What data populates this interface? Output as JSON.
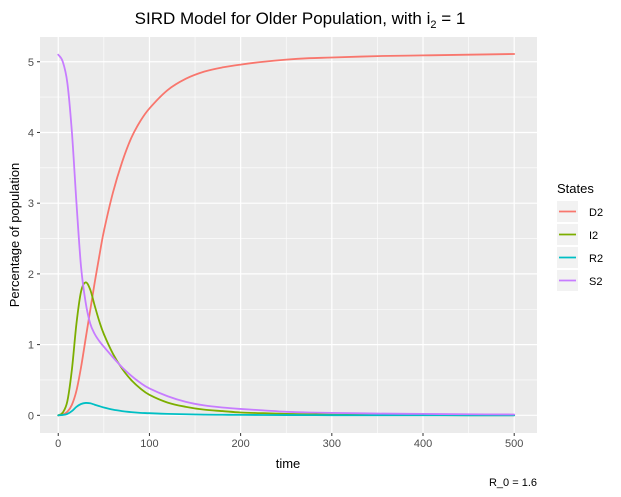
{
  "chart_data": {
    "type": "line",
    "title": "SIRD Model for Older Population, with i",
    "title_subscript": "2",
    "title_suffix": " = 1",
    "xlabel": "time",
    "ylabel": "Percentage of population",
    "caption": "R_0 = 1.6",
    "xlim": [
      -20,
      525
    ],
    "ylim": [
      -0.25,
      5.35
    ],
    "x_ticks": [
      0,
      100,
      200,
      300,
      400,
      500
    ],
    "y_ticks": [
      0,
      1,
      2,
      3,
      4,
      5
    ],
    "x_tick_labels": [
      "0",
      "100",
      "200",
      "300",
      "400",
      "500"
    ],
    "y_tick_labels": [
      "0",
      "1",
      "2",
      "3",
      "4",
      "5"
    ],
    "grid": true,
    "legend": {
      "title": "States",
      "position": "right",
      "entries": [
        "D2",
        "I2",
        "R2",
        "S2"
      ]
    },
    "x": [
      0,
      5,
      10,
      15,
      20,
      25,
      30,
      35,
      40,
      45,
      50,
      60,
      70,
      80,
      90,
      100,
      120,
      140,
      160,
      180,
      200,
      225,
      250,
      275,
      300,
      350,
      400,
      450,
      500
    ],
    "series": [
      {
        "name": "D2",
        "color": "#F8766D",
        "values": [
          0.0,
          0.01,
          0.05,
          0.15,
          0.35,
          0.68,
          1.08,
          1.48,
          1.88,
          2.25,
          2.6,
          3.15,
          3.58,
          3.92,
          4.16,
          4.34,
          4.6,
          4.76,
          4.86,
          4.92,
          4.96,
          5.0,
          5.03,
          5.05,
          5.06,
          5.08,
          5.09,
          5.1,
          5.11
        ]
      },
      {
        "name": "I2",
        "color": "#7CAE00",
        "values": [
          0.0,
          0.04,
          0.2,
          0.65,
          1.3,
          1.75,
          1.88,
          1.78,
          1.55,
          1.33,
          1.15,
          0.87,
          0.66,
          0.5,
          0.38,
          0.29,
          0.18,
          0.12,
          0.08,
          0.06,
          0.04,
          0.03,
          0.02,
          0.015,
          0.01,
          0.005,
          0.003,
          0.002,
          0.001
        ]
      },
      {
        "name": "R2",
        "color": "#00BFC4",
        "values": [
          0.0,
          0.005,
          0.02,
          0.06,
          0.12,
          0.16,
          0.175,
          0.17,
          0.15,
          0.13,
          0.11,
          0.08,
          0.06,
          0.045,
          0.035,
          0.03,
          0.02,
          0.015,
          0.01,
          0.008,
          0.006,
          0.005,
          0.004,
          0.003,
          0.002,
          0.001,
          0.001,
          0.0,
          0.0
        ]
      },
      {
        "name": "S2",
        "color": "#C77CFF",
        "values": [
          5.1,
          5.0,
          4.7,
          4.0,
          3.0,
          2.1,
          1.6,
          1.3,
          1.15,
          1.05,
          0.97,
          0.82,
          0.68,
          0.56,
          0.46,
          0.38,
          0.27,
          0.19,
          0.14,
          0.11,
          0.09,
          0.07,
          0.05,
          0.04,
          0.035,
          0.025,
          0.02,
          0.015,
          0.012
        ]
      }
    ]
  }
}
